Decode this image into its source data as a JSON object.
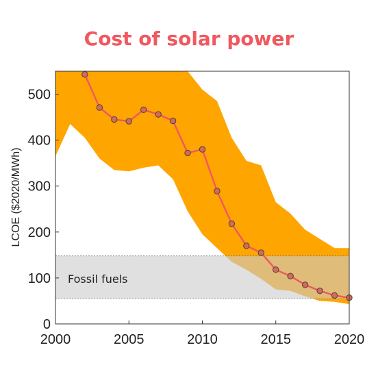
{
  "chart_data": {
    "type": "line",
    "title": "Cost of solar power",
    "ylabel": "LCOE ($2020/MWh)",
    "xlabel": "",
    "xlim": [
      2000,
      2020
    ],
    "ylim": [
      0,
      550
    ],
    "x_ticks": [
      2000,
      2005,
      2010,
      2015,
      2020
    ],
    "y_ticks": [
      0,
      100,
      200,
      300,
      400,
      500
    ],
    "grid": false,
    "series": [
      {
        "type": "line",
        "x": [
          2002,
          2003,
          2004,
          2005,
          2006,
          2007,
          2008,
          2009,
          2010,
          2011,
          2012,
          2013,
          2014,
          2015,
          2016,
          2017,
          2018,
          2019,
          2020
        ],
        "y": [
          543,
          471,
          445,
          441,
          466,
          456,
          442,
          372,
          380,
          289,
          218,
          170,
          155,
          118,
          104,
          85,
          72,
          62,
          57
        ]
      }
    ],
    "range_band": {
      "x": [
        2000,
        2001,
        2002,
        2003,
        2004,
        2005,
        2006,
        2007,
        2008,
        2009,
        2010,
        2011,
        2012,
        2013,
        2014,
        2015,
        2016,
        2017,
        2018,
        2019,
        2020
      ],
      "upper": [
        550,
        550,
        550,
        550,
        550,
        550,
        550,
        550,
        550,
        550,
        510,
        485,
        405,
        355,
        345,
        265,
        240,
        205,
        185,
        165,
        165
      ],
      "lower": [
        365,
        435,
        405,
        360,
        335,
        332,
        340,
        345,
        315,
        245,
        195,
        165,
        135,
        118,
        98,
        75,
        72,
        60,
        50,
        48,
        43
      ]
    },
    "reference_band": {
      "label": "Fossil fuels",
      "ymin": 55,
      "ymax": 148
    },
    "colors": {
      "title": "#f0595f",
      "line": "#f0595f",
      "marker_fill": "#d66a53",
      "marker_edge": "#444444",
      "range_band": "#ffa500",
      "reference_band": "#cccccc",
      "axis": "#333333"
    }
  }
}
